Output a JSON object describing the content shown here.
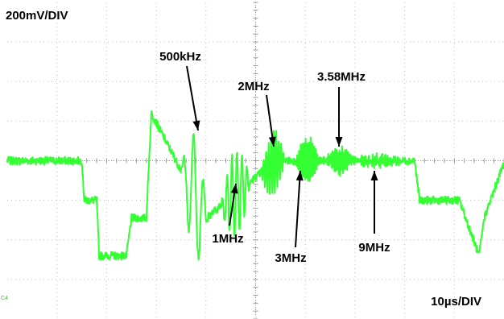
{
  "chart_data": {
    "type": "line",
    "title": "",
    "vertical_scale": "200mV/DIV",
    "horizontal_scale": "10µs/DIV",
    "channel_marker": "C4",
    "grid": true,
    "divisions": {
      "horizontal": 10,
      "vertical": 8
    },
    "trace_color": "#33ff33",
    "series": [
      {
        "x_unit": "µs",
        "y_unit": "mV",
        "x": [
          0,
          15,
          15.5,
          18,
          18.5,
          24,
          25,
          28,
          29,
          40,
          54,
          73,
          82,
          83,
          91,
          95,
          96,
          100
        ],
        "y": [
          0,
          0,
          -200,
          -200,
          -480,
          -480,
          -290,
          -290,
          240,
          -290,
          0,
          0,
          0,
          -200,
          -200,
          -480,
          -290,
          -10
        ]
      }
    ],
    "bursts": [
      {
        "label": "500kHz",
        "x_start": 35,
        "x_end": 40.5,
        "amplitude_mV": 300
      },
      {
        "label": "1MHz",
        "x_start": 43,
        "x_end": 49,
        "amplitude_mV": 220
      },
      {
        "label": "2MHz",
        "x_start": 51,
        "x_end": 56,
        "amplitude_mV": 150
      },
      {
        "label": "3MHz",
        "x_start": 58,
        "x_end": 63,
        "amplitude_mV": 110
      },
      {
        "label": "3.58MHz",
        "x_start": 64,
        "x_end": 70,
        "amplitude_mV": 60
      },
      {
        "label": "9MHz",
        "x_start": 70,
        "x_end": 80,
        "amplitude_mV": 20
      }
    ],
    "annotations": [
      {
        "text": "500kHz",
        "points_to_x": 38.5
      },
      {
        "text": "1MHz",
        "points_to_x": 46.5
      },
      {
        "text": "2MHz",
        "points_to_x": 53.5
      },
      {
        "text": "3MHz",
        "points_to_x": 59.5
      },
      {
        "text": "3.58MHz",
        "points_to_x": 66.5
      },
      {
        "text": "9MHz",
        "points_to_x": 74
      }
    ]
  }
}
